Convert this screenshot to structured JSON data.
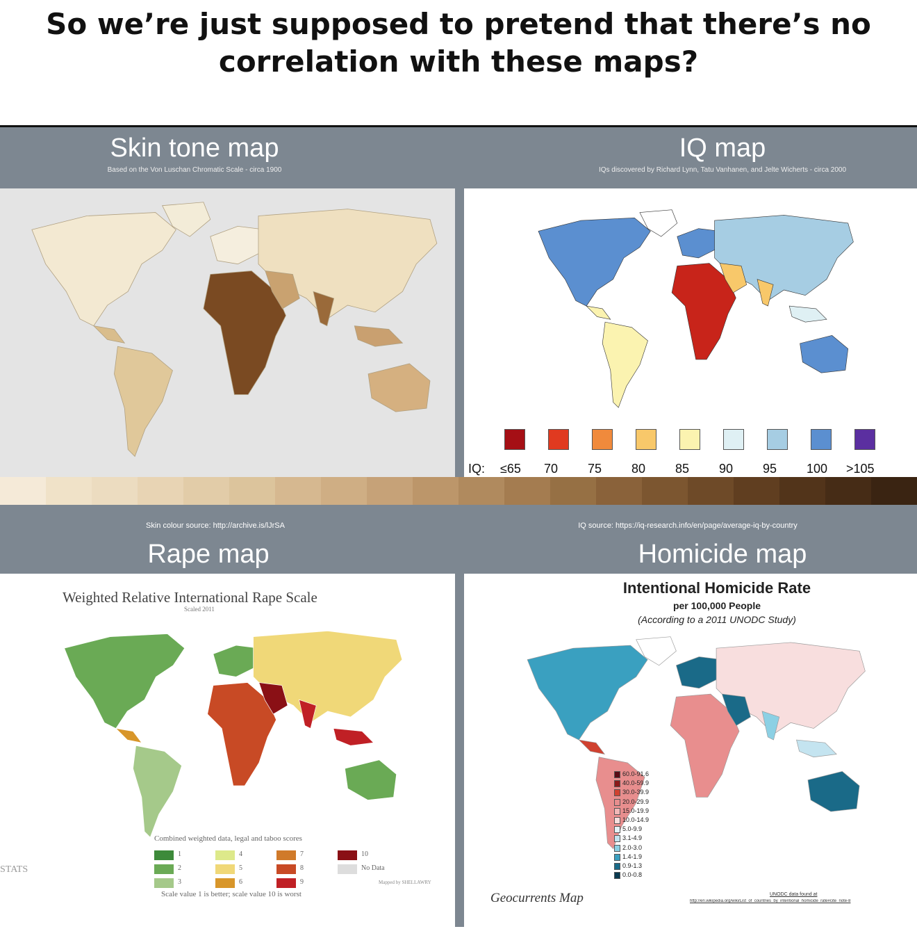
{
  "caption": "So we’re just supposed to pretend that there’s no correlation with these maps?",
  "skin": {
    "title": "Skin tone map",
    "subtitle": "Based on the Von Luschan Chromatic Scale - circa 1900",
    "source": "Skin colour source: http://archive.is/lJrSA"
  },
  "iq": {
    "title": "IQ map",
    "subtitle": "IQs discovered by Richard Lynn, Tatu Vanhanen, and Jelte Wicherts - circa 2000",
    "source": "IQ source: https://iq-research.info/en/page/average-iq-by-country",
    "legend_prefix": "IQ:",
    "legend": [
      {
        "label": "≤65",
        "color": "#a50f15"
      },
      {
        "label": "70",
        "color": "#e03a20"
      },
      {
        "label": "75",
        "color": "#f08a3c"
      },
      {
        "label": "80",
        "color": "#f8c86a"
      },
      {
        "label": "85",
        "color": "#fbf3b0"
      },
      {
        "label": "90",
        "color": "#dff0f4"
      },
      {
        "label": "95",
        "color": "#a6cde3"
      },
      {
        "label": "100",
        "color": "#5b8fd0"
      },
      {
        "label": ">105",
        "color": "#5b2fa0"
      }
    ]
  },
  "rape": {
    "title": "Rape map",
    "map_title": "Weighted Relative International Rape Scale",
    "map_subtitle": "Scaled 2011",
    "legend_title": "Combined weighted data, legal and taboo scores",
    "legend_note": "Scale value 1 is better; scale value 10 is worst",
    "credit": "Mapped by SHELLAWRY",
    "watermark": "STATS",
    "legend": [
      {
        "label": "1",
        "color": "#3d8a3a"
      },
      {
        "label": "2",
        "color": "#6aaa55"
      },
      {
        "label": "3",
        "color": "#a5c98a"
      },
      {
        "label": "4",
        "color": "#dde98a"
      },
      {
        "label": "5",
        "color": "#f0d878"
      },
      {
        "label": "6",
        "color": "#d8962a"
      },
      {
        "label": "7",
        "color": "#d07a2a"
      },
      {
        "label": "8",
        "color": "#c84a25"
      },
      {
        "label": "9",
        "color": "#c02025"
      },
      {
        "label": "10",
        "color": "#8a1015"
      },
      {
        "label": "No Data",
        "color": "#dddddd"
      }
    ]
  },
  "homicide": {
    "title": "Homicide map",
    "map_title": "Intentional Homicide Rate",
    "map_subtitle": "per 100,000 People",
    "map_note": "(According to a 2011 UNODC Study)",
    "credit": "Geocurrents Map",
    "data_note": "UNODC data found at",
    "data_link": "http://en.wikipedia.org/wiki/List_of_countries_by_intentional_homicide_rate#cite_note-8",
    "legend": [
      {
        "label": "60.0-91.6",
        "color": "#5a0a14"
      },
      {
        "label": "40.0-59.9",
        "color": "#8b1a1a"
      },
      {
        "label": "30.0-39.9",
        "color": "#d0412f"
      },
      {
        "label": "20.0-29.9",
        "color": "#e88e8e"
      },
      {
        "label": "15.0-19.9",
        "color": "#f2b8b8"
      },
      {
        "label": "10.0-14.9",
        "color": "#f8dede"
      },
      {
        "label": "5.0-9.9",
        "color": "#e4f2f8"
      },
      {
        "label": "3.1-4.9",
        "color": "#c4e4f0"
      },
      {
        "label": "2.0-3.0",
        "color": "#8cd0e4"
      },
      {
        "label": "1.4-1.9",
        "color": "#3aa0c0"
      },
      {
        "label": "0.9-1.3",
        "color": "#1a6a88"
      },
      {
        "label": "0.0-0.8",
        "color": "#0a3a50"
      }
    ]
  },
  "strip_colors": [
    "#f5ead8",
    "#f0e2c8",
    "#ecdcc0",
    "#e8d4b4",
    "#e2cca8",
    "#dcc49c",
    "#d6b890",
    "#cfae84",
    "#c6a278",
    "#bc966a",
    "#b08a5e",
    "#a47c50",
    "#967044",
    "#8a623a",
    "#7c5630",
    "#6e4a28",
    "#603e20",
    "#52341a",
    "#462c16",
    "#3a2412"
  ]
}
